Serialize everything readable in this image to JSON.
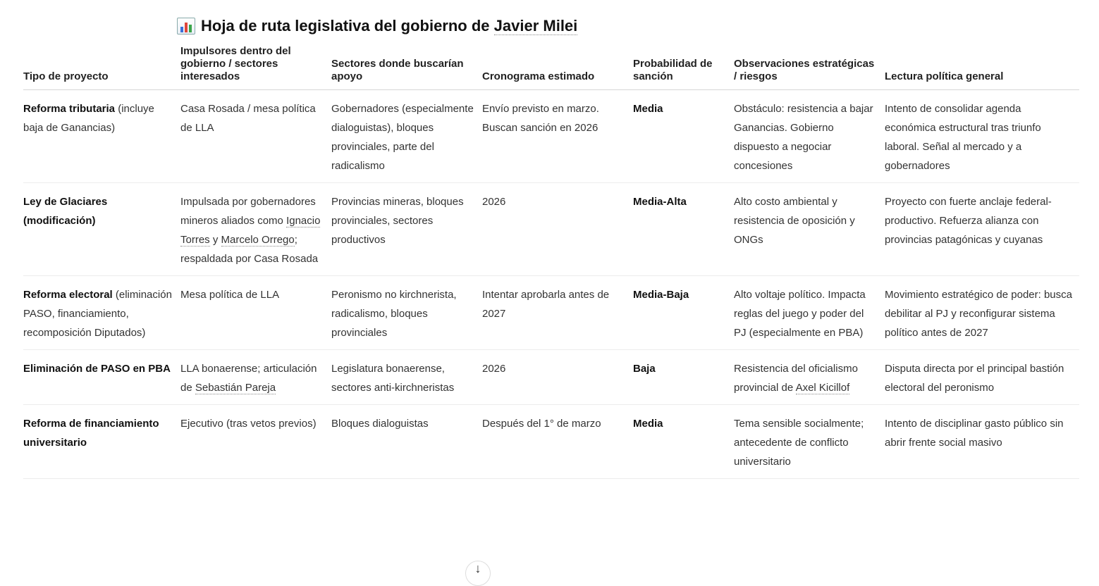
{
  "title": {
    "icon": "bar-chart-icon",
    "text_before": "Hoja de ruta legislativa del gobierno de ",
    "link": "Javier Milei"
  },
  "headers": [
    "Tipo de proyecto",
    "Impulsores dentro del gobierno / sectores interesados",
    "Sectores donde buscarían apoyo",
    "Cronograma estimado",
    "Probabilidad de sanción",
    "Observaciones estratégicas / riesgos",
    "Lectura política general"
  ],
  "rows": [
    [
      [
        {
          "t": "Reforma tributaria",
          "b": true
        },
        {
          "t": " (incluye baja de Ganancias)"
        }
      ],
      [
        {
          "t": "Casa Rosada / mesa política de LLA"
        }
      ],
      [
        {
          "t": "Gobernadores (especialmente dialoguistas), bloques provinciales, parte del radicalismo"
        }
      ],
      [
        {
          "t": "Envío previsto en marzo. Buscan sanción en 2026"
        }
      ],
      [
        {
          "t": "Media",
          "b": true
        }
      ],
      [
        {
          "t": "Obstáculo: resistencia a bajar Ganancias. Gobierno dispuesto a negociar concesiones"
        }
      ],
      [
        {
          "t": "Intento de consolidar agenda económica estructural tras triunfo laboral. Señal al mercado y a gobernadores"
        }
      ]
    ],
    [
      [
        {
          "t": "Ley de Glaciares (modificación)",
          "b": true
        }
      ],
      [
        {
          "t": "Impulsada por gobernadores mineros aliados como "
        },
        {
          "t": "Ignacio Torres",
          "link": true
        },
        {
          "t": " y "
        },
        {
          "t": "Marcelo Orrego",
          "link": true
        },
        {
          "t": "; respaldada por Casa Rosada"
        }
      ],
      [
        {
          "t": "Provincias mineras, bloques provinciales, sectores productivos"
        }
      ],
      [
        {
          "t": "2026"
        }
      ],
      [
        {
          "t": "Media-Alta",
          "b": true
        }
      ],
      [
        {
          "t": "Alto costo ambiental y resistencia de oposición y ONGs"
        }
      ],
      [
        {
          "t": "Proyecto con fuerte anclaje federal-productivo. Refuerza alianza con provincias patagónicas y cuyanas"
        }
      ]
    ],
    [
      [
        {
          "t": "Reforma electoral",
          "b": true
        },
        {
          "t": " (eliminación PASO, financiamiento, recomposición Diputados)"
        }
      ],
      [
        {
          "t": "Mesa política de LLA"
        }
      ],
      [
        {
          "t": "Peronismo no kirchnerista, radicalismo, bloques provinciales"
        }
      ],
      [
        {
          "t": "Intentar aprobarla antes de 2027"
        }
      ],
      [
        {
          "t": "Media-Baja",
          "b": true
        }
      ],
      [
        {
          "t": "Alto voltaje político. Impacta reglas del juego y poder del PJ (especialmente en PBA)"
        }
      ],
      [
        {
          "t": "Movimiento estratégico de poder: busca debilitar al PJ y reconfigurar sistema político antes de 2027"
        }
      ]
    ],
    [
      [
        {
          "t": "Eliminación de PASO en PBA",
          "b": true
        }
      ],
      [
        {
          "t": "LLA bonaerense; articulación de "
        },
        {
          "t": "Sebastián Pareja",
          "link": true
        }
      ],
      [
        {
          "t": "Legislatura bonaerense, sectores anti-kirchneristas"
        }
      ],
      [
        {
          "t": "2026"
        }
      ],
      [
        {
          "t": "Baja",
          "b": true
        }
      ],
      [
        {
          "t": "Resistencia del oficialismo provincial de "
        },
        {
          "t": "Axel Kicillof",
          "link": true
        }
      ],
      [
        {
          "t": "Disputa directa por el principal bastión electoral del peronismo"
        }
      ]
    ],
    [
      [
        {
          "t": "Reforma de financiamiento universitario",
          "b": true
        }
      ],
      [
        {
          "t": "Ejecutivo (tras vetos previos)"
        }
      ],
      [
        {
          "t": "Bloques dialoguistas"
        }
      ],
      [
        {
          "t": "Después del 1° de marzo"
        }
      ],
      [
        {
          "t": "Media",
          "b": true
        }
      ],
      [
        {
          "t": "Tema sensible socialmente; antecedente de conflicto universitario"
        }
      ],
      [
        {
          "t": "Intento de disciplinar gasto público sin abrir frente social masivo"
        }
      ]
    ]
  ],
  "scroll_button": {
    "icon": "arrow-down-icon",
    "glyph": "↓"
  }
}
